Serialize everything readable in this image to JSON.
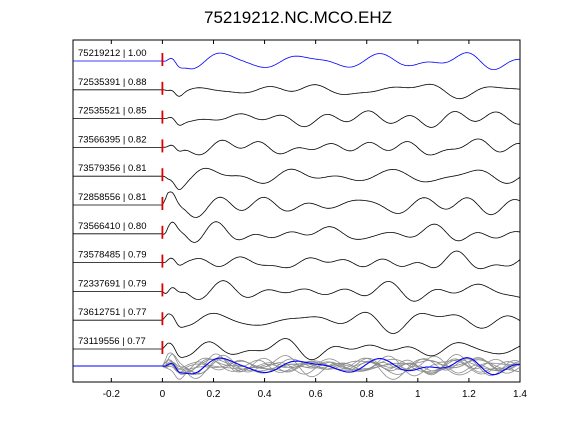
{
  "chart_data": {
    "type": "line",
    "title": "75219212.NC.MCO.EHZ",
    "xlabel": "",
    "ylabel": "",
    "xlim": [
      -0.35,
      1.4
    ],
    "x_ticks": [
      "-0.2",
      "0",
      "0.2",
      "0.4",
      "0.6",
      "0.8",
      "1",
      "1.2",
      "1.4"
    ],
    "x_tick_values": [
      -0.2,
      0,
      0.2,
      0.4,
      0.6,
      0.8,
      1.0,
      1.2,
      1.4
    ],
    "grid": false,
    "pick_time": 0,
    "series": [
      {
        "name": "75219212 | 1.00",
        "color": "#0000ff",
        "seed": 1
      },
      {
        "name": "72535391 | 0.88",
        "color": "#000000",
        "seed": 2
      },
      {
        "name": "72535521 | 0.85",
        "color": "#000000",
        "seed": 3
      },
      {
        "name": "73566395 | 0.82",
        "color": "#000000",
        "seed": 4
      },
      {
        "name": "73579356 | 0.81",
        "color": "#000000",
        "seed": 5
      },
      {
        "name": "72858556 | 0.81",
        "color": "#000000",
        "seed": 6
      },
      {
        "name": "73566410 | 0.80",
        "color": "#000000",
        "seed": 7
      },
      {
        "name": "73578485 | 0.79",
        "color": "#000000",
        "seed": 8
      },
      {
        "name": "72337691 | 0.79",
        "color": "#000000",
        "seed": 9
      },
      {
        "name": "73612751 | 0.77",
        "color": "#000000",
        "seed": 10
      },
      {
        "name": "73119556 | 0.77",
        "color": "#000000",
        "seed": 11
      }
    ],
    "stack_colors": {
      "reference": "#0000ff",
      "others": "#8c8c8c",
      "pick": "#dd0000"
    }
  }
}
